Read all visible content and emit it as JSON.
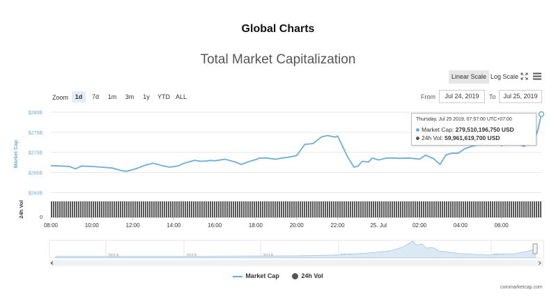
{
  "page": {
    "title": "Global Charts",
    "chart_title": "Total Market Capitalization",
    "credit": "coinmarketcap.com"
  },
  "toolbar": {
    "linear_scale": "Linear Scale",
    "log_scale": "Log Scale",
    "zoom_label": "Zoom",
    "zoom_options": [
      "1d",
      "7d",
      "1m",
      "3m",
      "1y",
      "YTD",
      "ALL"
    ],
    "active_zoom": "1d",
    "from_label": "From",
    "from_value": "Jul 24, 2019",
    "to_label": "To",
    "to_value": "Jul 25, 2019"
  },
  "tooltip": {
    "date": "Thursday, Jul 25 2019, 07:57:00 UTC+07:00",
    "market_cap_label": "Market Cap:",
    "market_cap_value": "279,510,196,750 USD",
    "vol_label": "24h Vol:",
    "vol_value": "59,961,619,700 USD"
  },
  "legend": {
    "market_cap": "Market Cap",
    "vol": "24h Vol"
  },
  "colors": {
    "market_cap": "#6aaed6",
    "volume": "#555555",
    "navigator_fill": "#dbe9f5"
  },
  "chart_data": {
    "type": "line",
    "ylabel": "Market Cap",
    "vol_label": "24h Vol",
    "y_ticks": [
      "$260B",
      "$265B",
      "$270B",
      "$275B",
      "$280B"
    ],
    "y_tick_values": [
      260,
      265,
      270,
      275,
      280
    ],
    "ylim": [
      258.5,
      280.7
    ],
    "vol_tick": "0",
    "x_ticks": [
      "08:00",
      "10:00",
      "12:00",
      "14:00",
      "16:00",
      "18:00",
      "20:00",
      "22:00",
      "25. Jul",
      "02:00",
      "04:00",
      "06:00"
    ],
    "x_tick_hours": [
      0,
      2,
      4,
      6,
      8,
      10,
      12,
      14,
      16,
      18,
      20,
      22
    ],
    "xlim_hours": [
      0,
      23.95
    ],
    "unit": "billion USD",
    "series": [
      {
        "name": "Market Cap",
        "x_hours": [
          0,
          0.5,
          0.9,
          1.2,
          1.5,
          2.0,
          2.5,
          3.0,
          3.5,
          3.7,
          4.0,
          4.3,
          4.6,
          5.0,
          5.5,
          5.8,
          6.2,
          6.5,
          7.0,
          7.3,
          7.5,
          7.8,
          8.0,
          8.5,
          9.0,
          9.3,
          9.6,
          10.0,
          10.2,
          10.5,
          11.0,
          11.3,
          11.6,
          12.0,
          12.4,
          12.8,
          13.2,
          13.5,
          13.9,
          14.0,
          14.5,
          14.8,
          15.0,
          15.2,
          15.5,
          15.7,
          16.0,
          16.4,
          16.8,
          17.0,
          17.5,
          18.0,
          18.3,
          18.7,
          19.0,
          19.3,
          19.6,
          19.9,
          20.2,
          20.6,
          21.0,
          21.3,
          21.5,
          21.8,
          22.0,
          22.4,
          22.7,
          22.9,
          23.1,
          23.3,
          23.6,
          23.8,
          23.95
        ],
        "values": [
          266.7,
          266.6,
          266.5,
          265.9,
          266.6,
          266.5,
          266.3,
          266.1,
          265.4,
          265.3,
          265.7,
          266.2,
          266.8,
          267.3,
          266.6,
          266.3,
          266.6,
          267.3,
          268.0,
          267.8,
          267.8,
          268.0,
          267.9,
          268.3,
          267.6,
          267.0,
          267.6,
          268.2,
          268.6,
          268.6,
          268.3,
          268.6,
          268.8,
          269.2,
          272.0,
          272.2,
          273.8,
          274.2,
          273.8,
          274.1,
          268.8,
          266.3,
          266.6,
          267.8,
          267.6,
          268.6,
          268.1,
          268.6,
          268.6,
          268.5,
          268.6,
          268.3,
          269.3,
          268.4,
          267.0,
          269.4,
          269.8,
          269.8,
          270.9,
          271.6,
          272.0,
          271.8,
          272.8,
          272.2,
          271.7,
          272.2,
          272.4,
          271.9,
          271.5,
          272.1,
          272.8,
          276.0,
          279.5
        ]
      },
      {
        "name": "24h Vol",
        "note_units": "billion USD",
        "constant_value": 59.96
      }
    ],
    "navigator": {
      "labels": [
        "2014",
        "2015",
        "2016",
        "2017",
        "2018",
        "2019"
      ]
    }
  }
}
